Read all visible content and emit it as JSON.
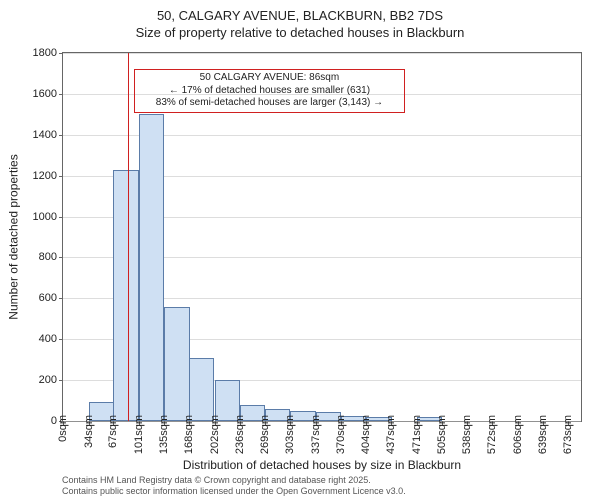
{
  "chart": {
    "type": "histogram",
    "title_line1": "50, CALGARY AVENUE, BLACKBURN, BB2 7DS",
    "title_line2": "Size of property relative to detached houses in Blackburn",
    "xlabel": "Distribution of detached houses by size in Blackburn",
    "ylabel": "Number of detached properties",
    "ylim": [
      0,
      1800
    ],
    "yticks": [
      0,
      200,
      400,
      600,
      800,
      1000,
      1200,
      1400,
      1600,
      1800
    ],
    "xlim": [
      0,
      690
    ],
    "xticks": [
      0,
      34,
      67,
      101,
      135,
      168,
      202,
      236,
      269,
      303,
      337,
      370,
      404,
      437,
      471,
      505,
      538,
      572,
      606,
      639,
      673
    ],
    "xtick_labels": [
      "0sqm",
      "34sqm",
      "67sqm",
      "101sqm",
      "135sqm",
      "168sqm",
      "202sqm",
      "236sqm",
      "269sqm",
      "303sqm",
      "337sqm",
      "370sqm",
      "404sqm",
      "437sqm",
      "471sqm",
      "505sqm",
      "538sqm",
      "572sqm",
      "606sqm",
      "639sqm",
      "673sqm"
    ],
    "bar_width_data": 33.6,
    "bar_color": "#cfe0f3",
    "bar_border_color": "#5b7ca8",
    "grid_color": "#bbbbbb",
    "axis_color": "#666666",
    "background_color": "#ffffff",
    "values": [
      0,
      95,
      1230,
      1500,
      560,
      310,
      200,
      80,
      60,
      50,
      45,
      25,
      20,
      0,
      18,
      0,
      0,
      0,
      0,
      0,
      0
    ],
    "marker": {
      "x": 86,
      "color": "#d02020"
    },
    "annotation": {
      "line1": "50 CALGARY AVENUE: 86sqm",
      "line2": "← 17% of detached houses are smaller (631)",
      "line3": "83% of semi-detached houses are larger (3,143) →",
      "border_color": "#d02020",
      "x_left_data": 95,
      "y_top_data": 1720,
      "width_data": 360
    }
  },
  "footer": {
    "line1": "Contains HM Land Registry data © Crown copyright and database right 2025.",
    "line2": "Contains public sector information licensed under the Open Government Licence v3.0."
  }
}
